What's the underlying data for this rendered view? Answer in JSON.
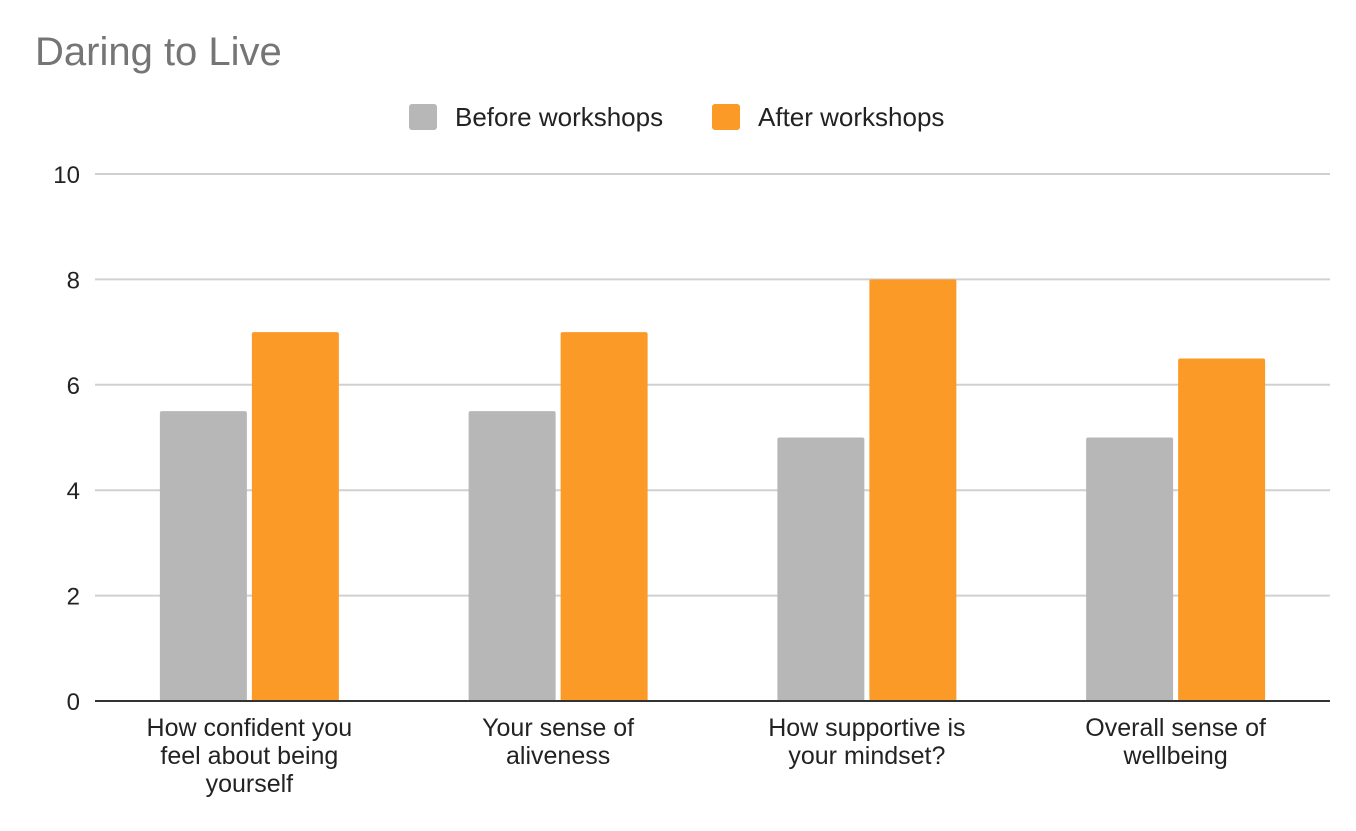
{
  "chart_data": {
    "type": "bar",
    "title": "Daring to Live",
    "xlabel": "",
    "ylabel": "",
    "categories": [
      [
        "How confident you",
        "feel about being",
        "yourself"
      ],
      [
        "Your sense of",
        "aliveness"
      ],
      [
        "How supportive is",
        "your mindset?"
      ],
      [
        "Overall sense of",
        "wellbeing"
      ]
    ],
    "series": [
      {
        "name": "Before workshops",
        "color": "#b7b7b7",
        "values": [
          5.5,
          5.5,
          5.0,
          5.0
        ]
      },
      {
        "name": "After workshops",
        "color": "#fb9a27",
        "values": [
          7.0,
          7.0,
          8.0,
          6.5
        ]
      }
    ],
    "ylim": [
      0,
      10
    ],
    "yticks": [
      "0",
      "2",
      "4",
      "6",
      "8",
      "10"
    ],
    "grid": true,
    "legend_position": "top-center"
  }
}
